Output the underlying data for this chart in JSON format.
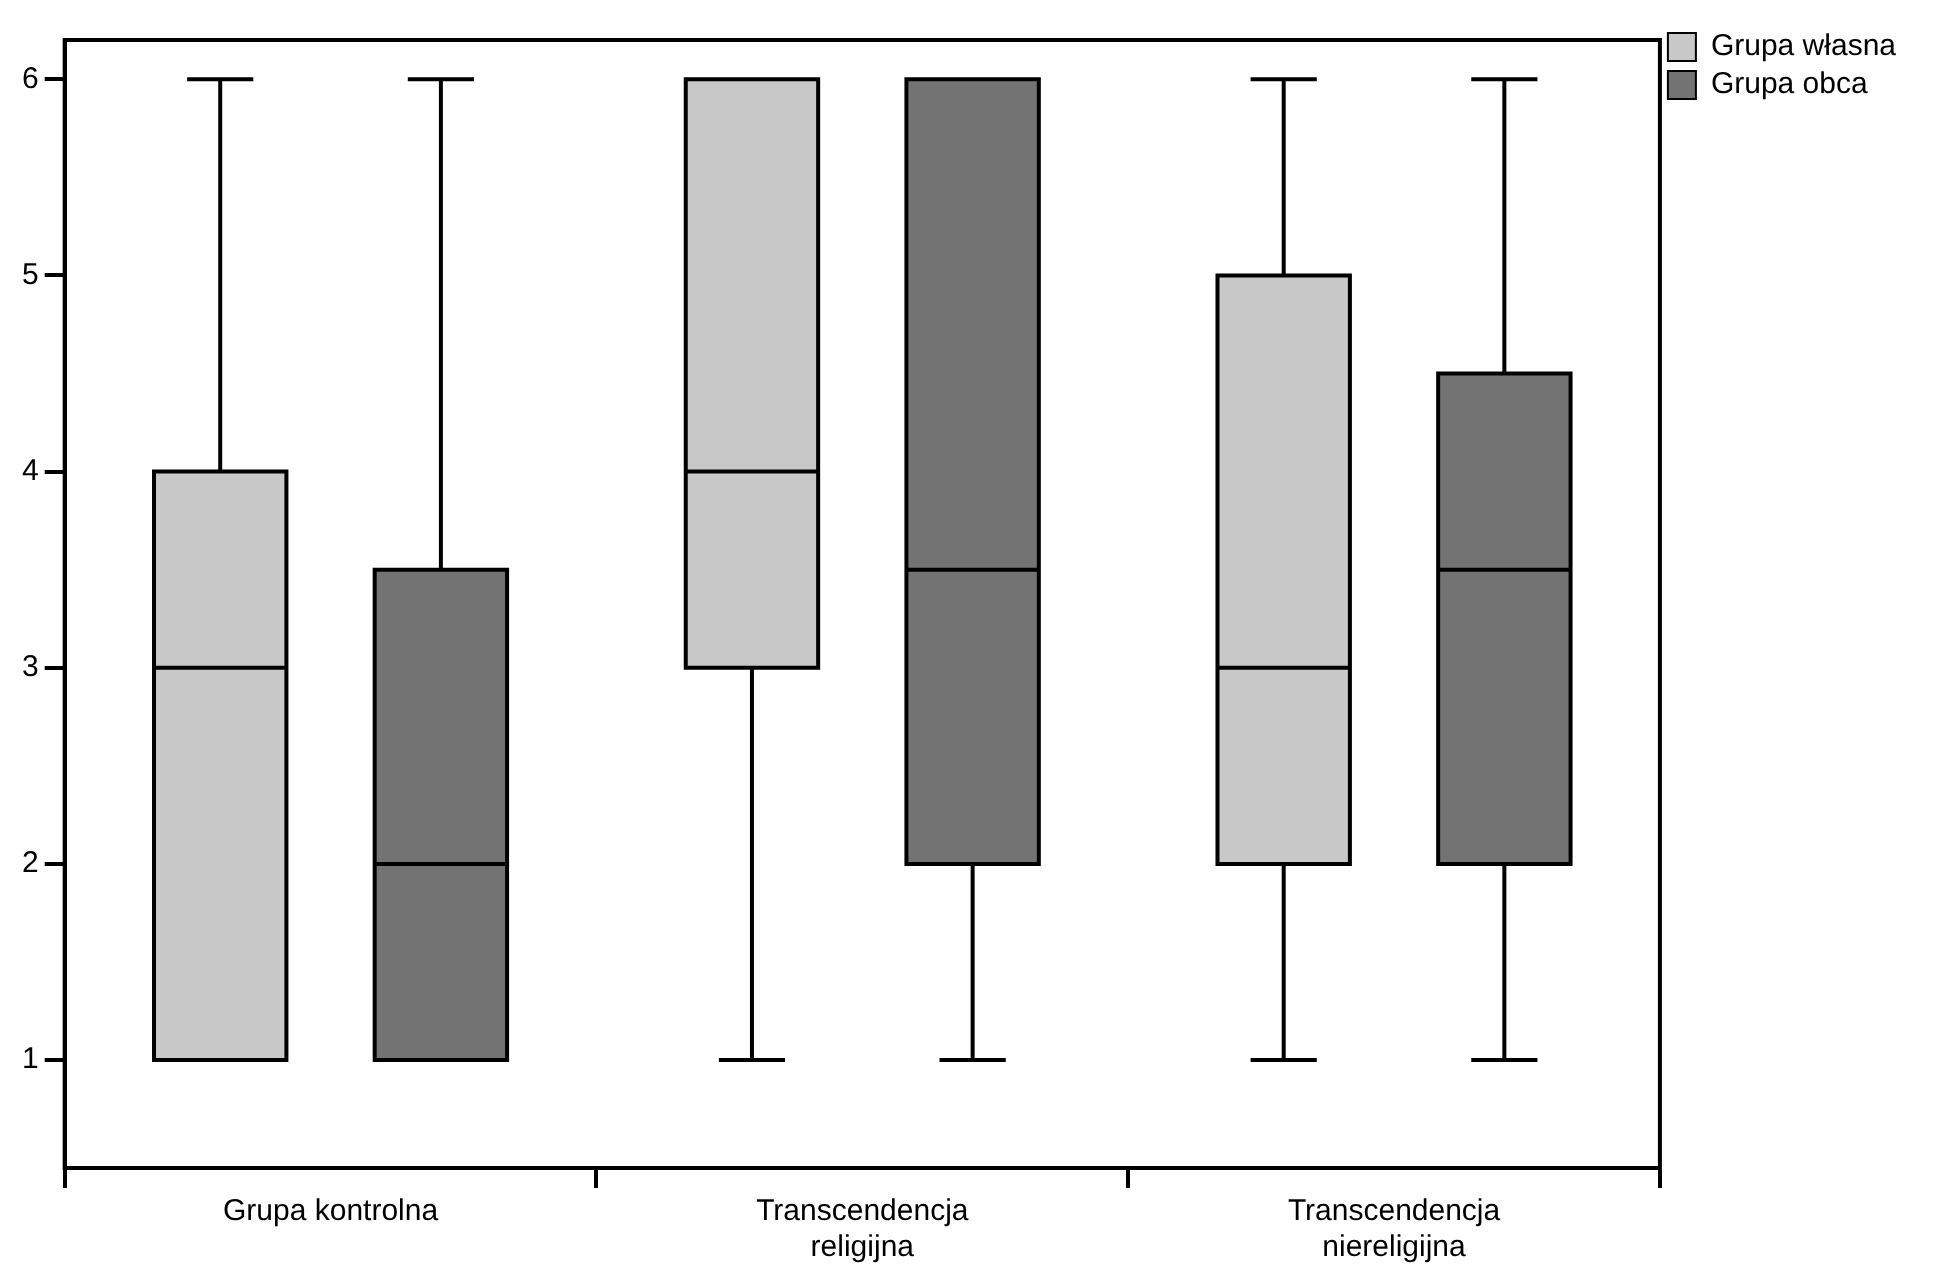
{
  "chart_data": {
    "type": "box",
    "categories": [
      "Grupa kontrolna",
      "Transcendencja religijna",
      "Transcendencja niereligijna"
    ],
    "series": [
      {
        "name": "Grupa własna",
        "color": "#c8c8c8",
        "boxes": [
          {
            "low": 1,
            "q1": 1,
            "median": 3,
            "q3": 4,
            "high": 6
          },
          {
            "low": 1,
            "q1": 3,
            "median": 4,
            "q3": 6,
            "high": 6
          },
          {
            "low": 1,
            "q1": 2,
            "median": 3,
            "q3": 5,
            "high": 6
          }
        ]
      },
      {
        "name": "Grupa obca",
        "color": "#737373",
        "boxes": [
          {
            "low": 1,
            "q1": 1,
            "median": 2,
            "q3": 3.5,
            "high": 6
          },
          {
            "low": 1,
            "q1": 2,
            "median": 3.5,
            "q3": 6,
            "high": 6
          },
          {
            "low": 1,
            "q1": 2,
            "median": 3.5,
            "q3": 4.5,
            "high": 6
          }
        ]
      }
    ],
    "ylim": [
      0.45,
      6.2
    ],
    "yticks": [
      1,
      2,
      3,
      4,
      5,
      6
    ],
    "grid": false,
    "legend": "top right"
  }
}
